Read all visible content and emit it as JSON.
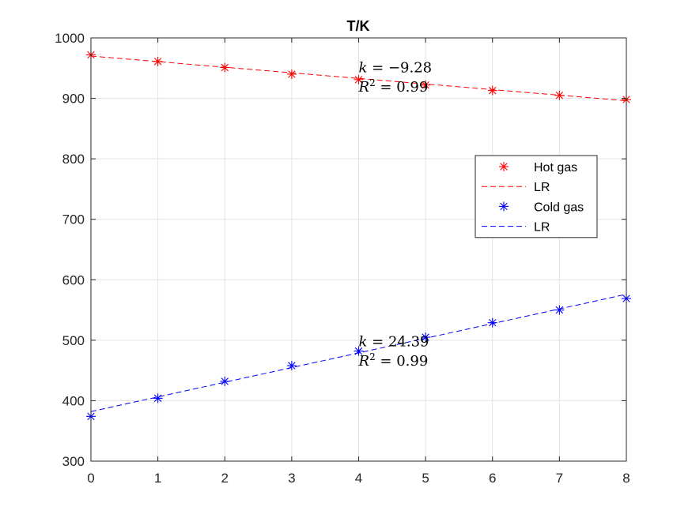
{
  "chart_data": {
    "type": "scatter",
    "title": "T/K",
    "xlabel": "",
    "ylabel": "",
    "xlim": [
      0,
      8
    ],
    "ylim": [
      300,
      1000
    ],
    "xticks": [
      0,
      1,
      2,
      3,
      4,
      5,
      6,
      7,
      8
    ],
    "yticks": [
      300,
      400,
      500,
      600,
      700,
      800,
      900,
      1000
    ],
    "xtick_labels": [
      "0",
      "1",
      "2",
      "3",
      "4",
      "5",
      "6",
      "7",
      "8"
    ],
    "ytick_labels": [
      "300",
      "400",
      "500",
      "600",
      "700",
      "800",
      "900",
      "1000"
    ],
    "grid": true,
    "legend_position": "right, upper-middle",
    "series": [
      {
        "name": "Hot gas",
        "kind": "scatter",
        "marker": "asterisk",
        "color": "#ff0000",
        "x": [
          0,
          1,
          2,
          3,
          4,
          5,
          6,
          7,
          8
        ],
        "y": [
          972,
          961,
          951,
          940,
          931,
          922,
          913,
          905,
          898
        ]
      },
      {
        "name": "LR",
        "kind": "line",
        "style": "dashed",
        "color": "#ff0000",
        "x": [
          0,
          8
        ],
        "y": [
          970,
          896
        ]
      },
      {
        "name": "Cold gas",
        "kind": "scatter",
        "marker": "asterisk",
        "color": "#0000ff",
        "x": [
          0,
          1,
          2,
          3,
          4,
          5,
          6,
          7,
          8
        ],
        "y": [
          374,
          404,
          432,
          458,
          482,
          505,
          529,
          550,
          569
        ]
      },
      {
        "name": "LR",
        "kind": "line",
        "style": "dashed",
        "color": "#0000ff",
        "x": [
          0,
          8
        ],
        "y": [
          382,
          576
        ]
      }
    ],
    "annotations": [
      {
        "x": 4,
        "y": 951,
        "var": "k",
        "eq": " = −9.28"
      },
      {
        "x": 4,
        "y": 919,
        "var": "R",
        "sup": "2",
        "eq": " = 0.99"
      },
      {
        "x": 4,
        "y": 498,
        "var": "k",
        "eq": " = 24.39"
      },
      {
        "x": 4,
        "y": 466,
        "var": "R",
        "sup": "2",
        "eq": " = 0.99"
      }
    ]
  }
}
